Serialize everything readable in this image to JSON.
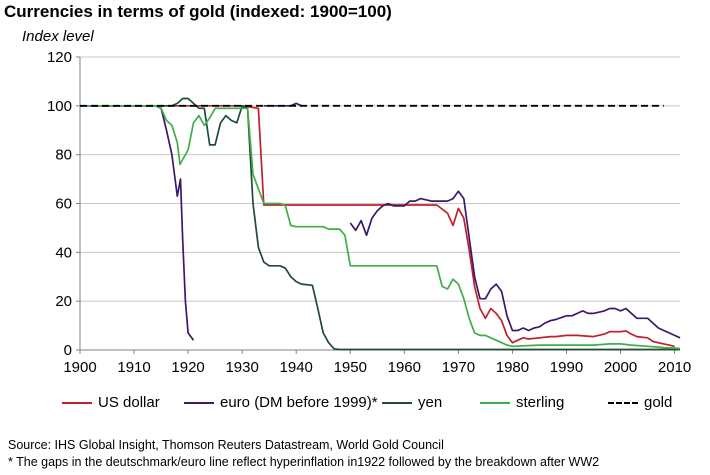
{
  "chart_data": {
    "type": "line",
    "title": "Currencies in terms of gold (indexed: 1900=100)",
    "ylabel": "Index level",
    "xlabel": "",
    "xlim": [
      1900,
      2011
    ],
    "ylim": [
      0,
      120
    ],
    "x_ticks": [
      1900,
      1910,
      1920,
      1930,
      1940,
      1950,
      1960,
      1970,
      1980,
      1990,
      2000,
      2010
    ],
    "y_ticks": [
      0,
      20,
      40,
      60,
      80,
      100,
      120
    ],
    "grid": "horizontal",
    "legend_position": "bottom",
    "series": [
      {
        "name": "US dollar",
        "color": "#c0202a",
        "dash": "solid",
        "segments": [
          [
            [
              1900,
              100
            ],
            [
              1910,
              100
            ],
            [
              1920,
              100
            ],
            [
              1925,
              100
            ],
            [
              1930,
              100
            ],
            [
              1933,
              99
            ],
            [
              1934,
              59.4
            ],
            [
              1940,
              59.4
            ],
            [
              1950,
              59.4
            ],
            [
              1960,
              59.4
            ],
            [
              1966,
              59.4
            ],
            [
              1968,
              56
            ],
            [
              1969,
              51
            ],
            [
              1970,
              58
            ],
            [
              1971,
              54
            ],
            [
              1972,
              41
            ],
            [
              1973,
              26
            ],
            [
              1974,
              17
            ],
            [
              1975,
              13
            ],
            [
              1976,
              17
            ],
            [
              1977,
              15
            ],
            [
              1978,
              12
            ],
            [
              1979,
              6
            ],
            [
              1980,
              3
            ],
            [
              1981,
              4
            ],
            [
              1982,
              5
            ],
            [
              1983,
              4.5
            ],
            [
              1985,
              5
            ],
            [
              1987,
              5.5
            ],
            [
              1988,
              5.5
            ],
            [
              1990,
              6
            ],
            [
              1992,
              6
            ],
            [
              1995,
              5.5
            ],
            [
              1997,
              6.5
            ],
            [
              1998,
              7.5
            ],
            [
              2000,
              7.5
            ],
            [
              2001,
              7.8
            ],
            [
              2002,
              6.5
            ],
            [
              2003,
              5.5
            ],
            [
              2005,
              5
            ],
            [
              2006,
              3.5
            ],
            [
              2008,
              2.5
            ],
            [
              2009,
              2
            ],
            [
              2010,
              1.5
            ]
          ]
        ]
      },
      {
        "name": "euro (DM before 1999)*",
        "color": "#3b1868",
        "dash": "solid",
        "segments": [
          [
            [
              1900,
              100
            ],
            [
              1914,
              100
            ],
            [
              1915,
              99
            ],
            [
              1916,
              90
            ],
            [
              1917,
              80
            ],
            [
              1918,
              63
            ],
            [
              1918.6,
              70
            ],
            [
              1919,
              45
            ],
            [
              1919.5,
              20
            ],
            [
              1920,
              7
            ],
            [
              1921,
              4
            ]
          ],
          [
            [
              1934,
              100
            ],
            [
              1937,
              100
            ],
            [
              1939,
              100
            ],
            [
              1940,
              101
            ],
            [
              1941,
              100
            ]
          ],
          [
            [
              1950,
              52
            ],
            [
              1951,
              49
            ],
            [
              1952,
              53
            ],
            [
              1953,
              47
            ],
            [
              1954,
              54
            ],
            [
              1955,
              57
            ],
            [
              1956,
              59
            ],
            [
              1957,
              60
            ],
            [
              1958,
              59
            ],
            [
              1959,
              59
            ],
            [
              1960,
              59
            ],
            [
              1961,
              61
            ],
            [
              1962,
              61
            ],
            [
              1963,
              62
            ],
            [
              1965,
              61
            ],
            [
              1966,
              61
            ],
            [
              1967,
              61
            ],
            [
              1968,
              61
            ],
            [
              1969,
              62
            ],
            [
              1970,
              65
            ],
            [
              1971,
              62
            ],
            [
              1972,
              46
            ],
            [
              1973,
              30
            ],
            [
              1974,
              21
            ],
            [
              1975,
              21
            ],
            [
              1976,
              25
            ],
            [
              1977,
              27
            ],
            [
              1978,
              24
            ],
            [
              1979,
              14
            ],
            [
              1980,
              8
            ],
            [
              1981,
              8
            ],
            [
              1982,
              9
            ],
            [
              1983,
              8
            ],
            [
              1984,
              9
            ],
            [
              1985,
              9.5
            ],
            [
              1986,
              11
            ],
            [
              1987,
              12
            ],
            [
              1988,
              12.5
            ],
            [
              1990,
              14
            ],
            [
              1991,
              14
            ],
            [
              1992,
              15
            ],
            [
              1993,
              16
            ],
            [
              1994,
              15
            ],
            [
              1995,
              15
            ],
            [
              1996,
              15.5
            ],
            [
              1997,
              16
            ],
            [
              1998,
              17
            ],
            [
              1999,
              17
            ],
            [
              2000,
              16
            ],
            [
              2001,
              17
            ],
            [
              2002,
              15
            ],
            [
              2003,
              13
            ],
            [
              2004,
              13
            ],
            [
              2005,
              13
            ],
            [
              2006,
              11
            ],
            [
              2007,
              9
            ],
            [
              2008,
              8
            ],
            [
              2009,
              7
            ],
            [
              2010,
              6
            ],
            [
              2011,
              5
            ]
          ]
        ]
      },
      {
        "name": "yen",
        "color": "#1e4d33",
        "dash": "solid",
        "segments": [
          [
            [
              1900,
              100
            ],
            [
              1910,
              100
            ],
            [
              1917,
              100
            ],
            [
              1918,
              101
            ],
            [
              1919,
              103
            ],
            [
              1920,
              103
            ],
            [
              1921,
              101
            ],
            [
              1922,
              99
            ],
            [
              1923,
              99
            ],
            [
              1924,
              84
            ],
            [
              1925,
              84
            ],
            [
              1926,
              93
            ],
            [
              1927,
              96
            ],
            [
              1928,
              94
            ],
            [
              1929,
              93
            ],
            [
              1930,
              100
            ],
            [
              1931,
              99
            ],
            [
              1932,
              60
            ],
            [
              1933,
              42
            ],
            [
              1934,
              36
            ],
            [
              1935,
              34.5
            ],
            [
              1936,
              34.5
            ],
            [
              1937,
              34.5
            ],
            [
              1938,
              33.5
            ],
            [
              1939,
              30
            ],
            [
              1940,
              28
            ],
            [
              1941,
              27
            ],
            [
              1943,
              26.5
            ],
            [
              1944,
              17
            ],
            [
              1945,
              7
            ],
            [
              1946,
              3
            ],
            [
              1947,
              0.5
            ],
            [
              1948,
              0.2
            ],
            [
              1960,
              0.2
            ],
            [
              1980,
              0.2
            ],
            [
              2011,
              0.2
            ]
          ]
        ]
      },
      {
        "name": "sterling",
        "color": "#3fae49",
        "dash": "solid",
        "segments": [
          [
            [
              1900,
              100
            ],
            [
              1910,
              100
            ],
            [
              1914,
              100
            ],
            [
              1915,
              99
            ],
            [
              1916,
              94
            ],
            [
              1917,
              92
            ],
            [
              1918,
              85
            ],
            [
              1918.5,
              76
            ],
            [
              1919,
              78
            ],
            [
              1920,
              82
            ],
            [
              1921,
              93
            ],
            [
              1922,
              96
            ],
            [
              1923,
              92
            ],
            [
              1924,
              95
            ],
            [
              1925,
              99
            ],
            [
              1931,
              99
            ],
            [
              1932,
              72
            ],
            [
              1933,
              66
            ],
            [
              1934,
              60
            ],
            [
              1935,
              60
            ],
            [
              1936,
              60
            ],
            [
              1937,
              60
            ],
            [
              1938,
              59
            ],
            [
              1939,
              51
            ],
            [
              1940,
              50.5
            ],
            [
              1945,
              50.5
            ],
            [
              1946,
              49.5
            ],
            [
              1948,
              49.5
            ],
            [
              1949,
              47
            ],
            [
              1950,
              34.5
            ],
            [
              1955,
              34.5
            ],
            [
              1960,
              34.5
            ],
            [
              1966,
              34.5
            ],
            [
              1967,
              26
            ],
            [
              1968,
              25
            ],
            [
              1969,
              29
            ],
            [
              1970,
              27
            ],
            [
              1971,
              21
            ],
            [
              1972,
              13
            ],
            [
              1973,
              7
            ],
            [
              1974,
              6
            ],
            [
              1975,
              6
            ],
            [
              1976,
              5
            ],
            [
              1977,
              4
            ],
            [
              1978,
              3
            ],
            [
              1979,
              2
            ],
            [
              1980,
              1.5
            ],
            [
              1985,
              2
            ],
            [
              1990,
              2
            ],
            [
              1992,
              2
            ],
            [
              1995,
              2
            ],
            [
              1998,
              2.5
            ],
            [
              2000,
              2.5
            ],
            [
              2002,
              2
            ],
            [
              2005,
              1.5
            ],
            [
              2008,
              1
            ],
            [
              2010,
              0.8
            ],
            [
              2011,
              0.6
            ]
          ]
        ]
      },
      {
        "name": "gold",
        "color": "#000000",
        "dash": "dashed",
        "segments": [
          [
            [
              1900,
              100
            ],
            [
              2008,
              100
            ]
          ]
        ]
      }
    ]
  },
  "footer": {
    "source": "Source: IHS Global Insight, Thomson Reuters Datastream, World Gold Council",
    "note": "* The gaps in the deutschmark/euro line reflect  hyperinflation in1922 followed by the breakdown after WW2"
  }
}
